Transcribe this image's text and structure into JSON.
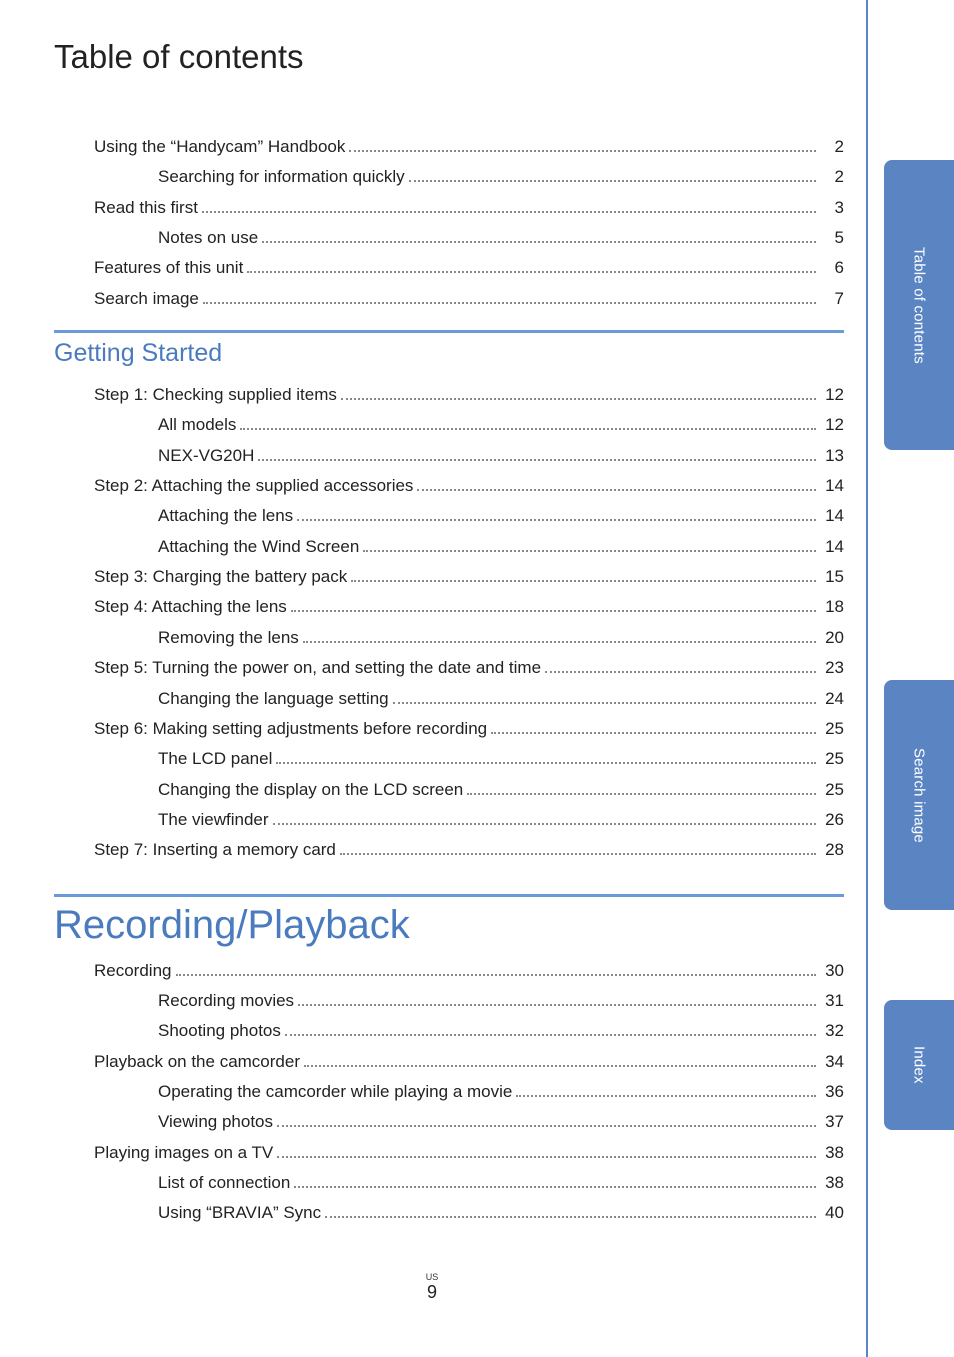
{
  "title": "Table of contents",
  "colors": {
    "heading_blue": "#4a7bbf",
    "rule_blue": "#6a9bd8",
    "tab_blue": "#5b85c2",
    "text": "#222222",
    "dots": "#888888",
    "background": "#ffffff"
  },
  "typography": {
    "title_fontsize": 33,
    "section_heading_fontsize": 25,
    "chapter_heading_fontsize": 40,
    "body_fontsize": 17,
    "tab_fontsize": 15,
    "pagenum_fontsize": 18
  },
  "intro": {
    "entries": [
      {
        "label": "Using the “Handycam” Handbook",
        "page": "2",
        "level": 0
      },
      {
        "label": "Searching for information quickly",
        "page": "2",
        "level": 1
      },
      {
        "label": "Read this first",
        "page": "3",
        "level": 0
      },
      {
        "label": "Notes on use",
        "page": "5",
        "level": 1
      },
      {
        "label": "Features of this unit",
        "page": "6",
        "level": 0
      },
      {
        "label": "Search image",
        "page": "7",
        "level": 0
      }
    ]
  },
  "getting_started": {
    "heading": "Getting Started",
    "entries": [
      {
        "label": "Step 1: Checking supplied items",
        "page": "12",
        "level": 0
      },
      {
        "label": "All models",
        "page": "12",
        "level": 1
      },
      {
        "label": "NEX-VG20H",
        "page": "13",
        "level": 1
      },
      {
        "label": "Step 2: Attaching the supplied accessories",
        "page": "14",
        "level": 0
      },
      {
        "label": "Attaching the lens",
        "page": "14",
        "level": 1
      },
      {
        "label": "Attaching the Wind Screen",
        "page": "14",
        "level": 1
      },
      {
        "label": "Step 3: Charging the battery pack",
        "page": "15",
        "level": 0
      },
      {
        "label": "Step 4: Attaching the lens",
        "page": "18",
        "level": 0
      },
      {
        "label": "Removing the lens",
        "page": "20",
        "level": 1
      },
      {
        "label": "Step 5: Turning the power on, and setting the date and time",
        "page": "23",
        "level": 0
      },
      {
        "label": "Changing the language setting",
        "page": "24",
        "level": 1
      },
      {
        "label": "Step 6: Making setting adjustments before recording",
        "page": "25",
        "level": 0
      },
      {
        "label": "The LCD panel",
        "page": "25",
        "level": 1
      },
      {
        "label": "Changing the display on the LCD screen",
        "page": "25",
        "level": 1
      },
      {
        "label": "The viewfinder",
        "page": "26",
        "level": 1
      },
      {
        "label": "Step 7: Inserting a memory card",
        "page": "28",
        "level": 0
      }
    ]
  },
  "recording_playback": {
    "heading": "Recording/Playback",
    "entries": [
      {
        "label": "Recording",
        "page": "30",
        "level": 0
      },
      {
        "label": "Recording movies",
        "page": "31",
        "level": 1
      },
      {
        "label": "Shooting photos",
        "page": "32",
        "level": 1
      },
      {
        "label": "Playback on the camcorder",
        "page": "34",
        "level": 0
      },
      {
        "label": "Operating the camcorder while playing a movie",
        "page": "36",
        "level": 1
      },
      {
        "label": "Viewing photos",
        "page": "37",
        "level": 1
      },
      {
        "label": "Playing images on a TV",
        "page": "38",
        "level": 0
      },
      {
        "label": "List of connection",
        "page": "38",
        "level": 1
      },
      {
        "label": "Using “BRAVIA” Sync",
        "page": "40",
        "level": 1
      }
    ]
  },
  "tabs": [
    {
      "label": "Table of contents"
    },
    {
      "label": "Search image"
    },
    {
      "label": "Index"
    }
  ],
  "footer": {
    "region": "US",
    "page_number": "9"
  }
}
